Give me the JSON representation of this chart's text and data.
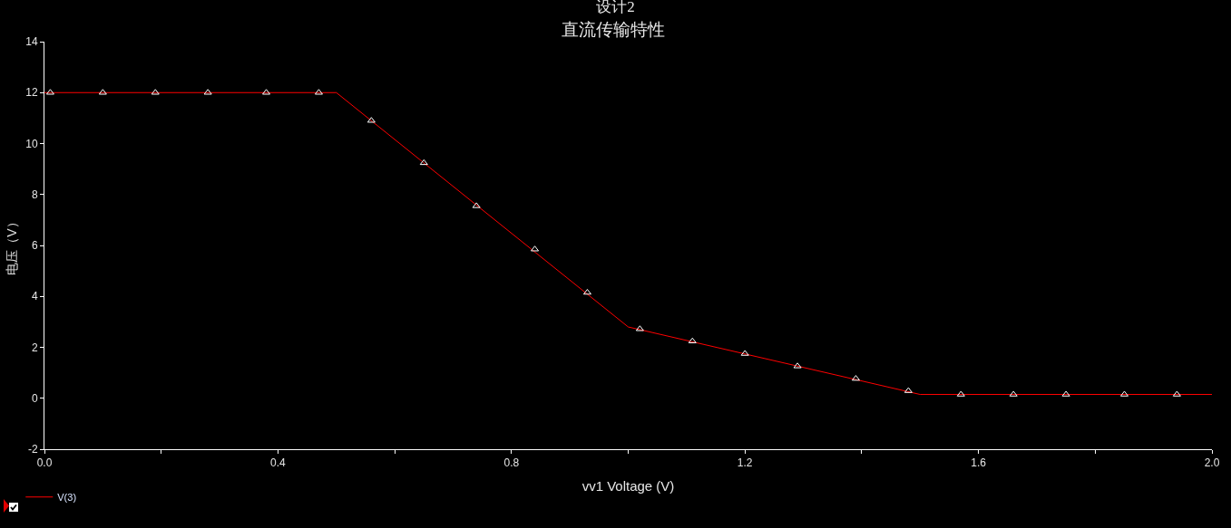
{
  "chart_data": {
    "type": "line",
    "title": "设计2",
    "subtitle": "直流传输特性",
    "xlabel": "vv1 Voltage (V)",
    "ylabel": "电压（V）",
    "xlim": [
      0,
      2
    ],
    "xticks": [
      {
        "value": 0,
        "label": "0.0"
      },
      {
        "value": 0.2,
        "label": null
      },
      0.4,
      {
        "value": 0.6,
        "label": null
      },
      0.8,
      {
        "value": 1.0,
        "label": null
      },
      1.2,
      {
        "value": 1.4,
        "label": null
      },
      1.6,
      {
        "value": 1.8,
        "label": null
      },
      {
        "value": 2,
        "label": "2.0"
      }
    ],
    "ylim": [
      -2,
      14
    ],
    "yticks": [
      -2,
      0,
      2,
      4,
      6,
      8,
      10,
      12,
      14
    ],
    "legend": "bottom left",
    "series": [
      {
        "name": "V(3)",
        "type": "line",
        "color": "#ff0000",
        "marker": "none",
        "x": [
          0,
          0.5,
          1.0,
          1.5,
          2.0
        ],
        "values": [
          12,
          12,
          2.8,
          0.15,
          0.15
        ]
      },
      {
        "type": "scatter",
        "color": "#ffffff",
        "marker": "triangle",
        "x": [
          0.01,
          0.1,
          0.19,
          0.28,
          0.38,
          0.47,
          0.56,
          0.65,
          0.74,
          0.84,
          0.93,
          1.02,
          1.11,
          1.2,
          1.29,
          1.39,
          1.48,
          1.57,
          1.66,
          1.75,
          1.85,
          1.94
        ],
        "values": [
          12,
          12,
          12,
          12,
          12,
          12,
          10.9,
          9.24,
          7.55,
          5.85,
          4.15,
          2.72,
          2.24,
          1.75,
          1.26,
          0.77,
          0.29,
          0.15,
          0.15,
          0.15,
          0.15,
          0.15
        ]
      }
    ]
  }
}
